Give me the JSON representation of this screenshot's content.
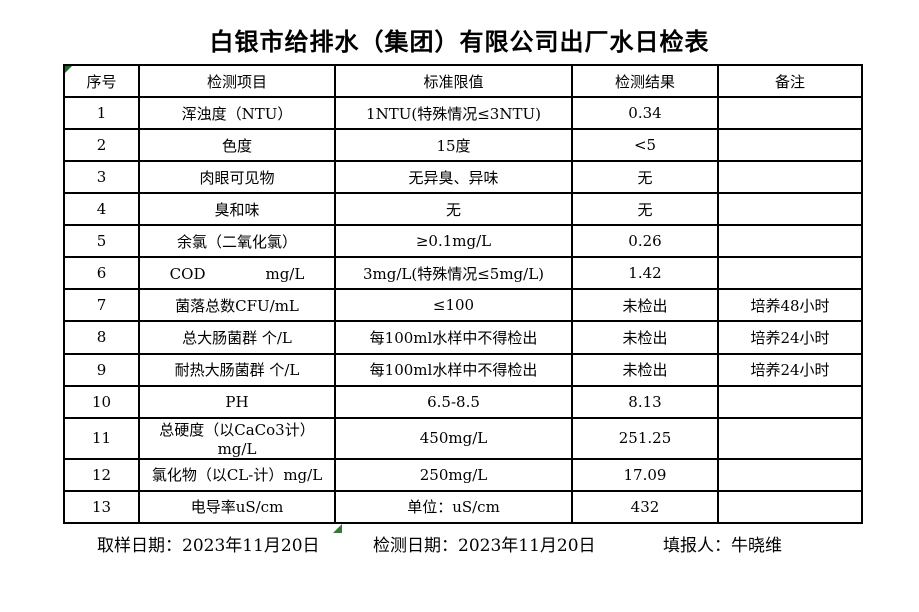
{
  "title": "白银市给排水（集团）有限公司出厂水日检表",
  "table": {
    "headers": [
      "序号",
      "检测项目",
      "标准限值",
      "检测结果",
      "备注"
    ],
    "rows": [
      {
        "no": "1",
        "item": "浑浊度（NTU）",
        "limit": "1NTU(特殊情况≤3NTU)",
        "result": "0.34",
        "note": ""
      },
      {
        "no": "2",
        "item": "色度",
        "limit": "15度",
        "result": "<5",
        "note": ""
      },
      {
        "no": "3",
        "item": "肉眼可见物",
        "limit": "无异臭、异味",
        "result": "无",
        "note": ""
      },
      {
        "no": "4",
        "item": "臭和味",
        "limit": "无",
        "result": "无",
        "note": ""
      },
      {
        "no": "5",
        "item": "余氯（二氧化氯）",
        "limit": "≥0.1mg/L",
        "result": "0.26",
        "note": ""
      },
      {
        "no": "6",
        "item": "COD　　　　mg/L",
        "limit": "3mg/L(特殊情况≤5mg/L)",
        "result": "1.42",
        "note": ""
      },
      {
        "no": "7",
        "item": "菌落总数CFU/mL",
        "limit": "≤100",
        "result": "未检出",
        "note": "培养48小时"
      },
      {
        "no": "8",
        "item": "总大肠菌群 个/L",
        "limit": "每100ml水样中不得检出",
        "result": "未检出",
        "note": "培养24小时"
      },
      {
        "no": "9",
        "item": "耐热大肠菌群 个/L",
        "limit": "每100ml水样中不得检出",
        "result": "未检出",
        "note": "培养24小时"
      },
      {
        "no": "10",
        "item": "PH",
        "limit": "6.5-8.5",
        "result": "8.13",
        "note": ""
      },
      {
        "no": "11",
        "item": "总硬度（以CaCo3计）mg/L",
        "limit": "450mg/L",
        "result": "251.25",
        "note": ""
      },
      {
        "no": "12",
        "item": "氯化物（以CL-计）mg/L",
        "limit": "250mg/L",
        "result": "17.09",
        "note": ""
      },
      {
        "no": "13",
        "item": "电导率uS/cm",
        "limit": "单位：uS/cm",
        "result": "432",
        "note": ""
      }
    ]
  },
  "footer": {
    "sampling_date": "取样日期：2023年11月20日",
    "test_date": "检测日期：2023年11月20日",
    "reporter": "填报人：牛晓维"
  },
  "icons": {
    "corner_marker": "green-corner-flag",
    "bottom_marker": "green-triangle-flag"
  },
  "colors": {
    "background": "#ffffff",
    "border": "#000000",
    "text": "#000000",
    "marker_green": "#2e7d32"
  }
}
